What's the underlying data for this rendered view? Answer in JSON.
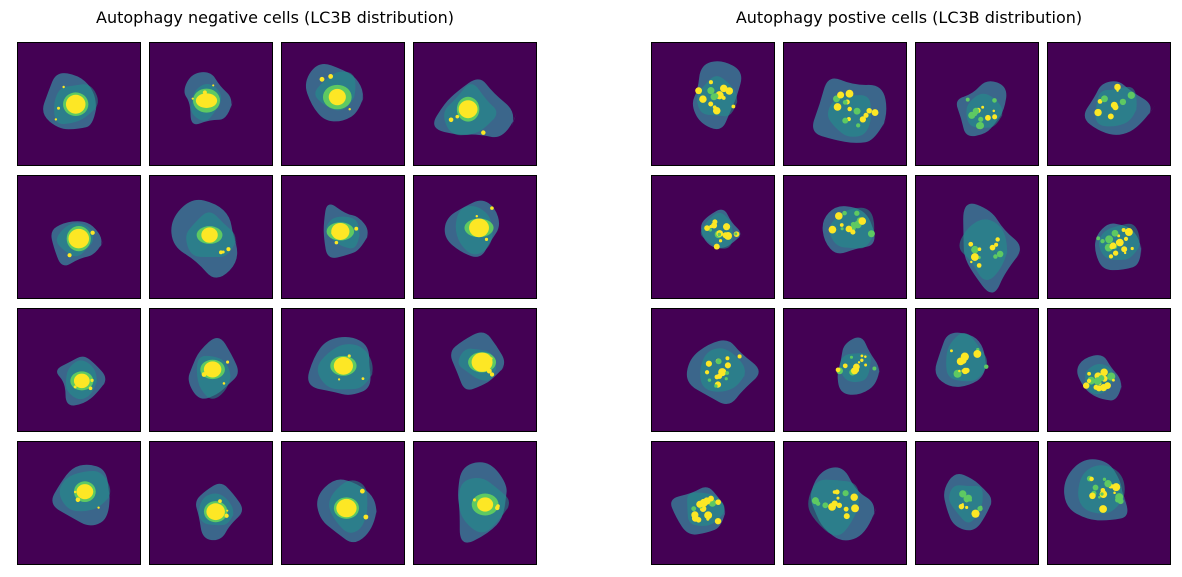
{
  "figure": {
    "panels": [
      {
        "title": "Autophagy negative cells (LC3B distribution)",
        "phenotype": "negative",
        "rows": 4,
        "cols": 4
      },
      {
        "title": "Autophagy postive cells (LC3B distribution)",
        "phenotype": "positive",
        "rows": 4,
        "cols": 4
      }
    ],
    "colormap": {
      "background": "#440154",
      "cytoplasm": "#3b6c8e",
      "mid": "#21918c",
      "high": "#5ec962",
      "peak": "#fde725"
    }
  }
}
